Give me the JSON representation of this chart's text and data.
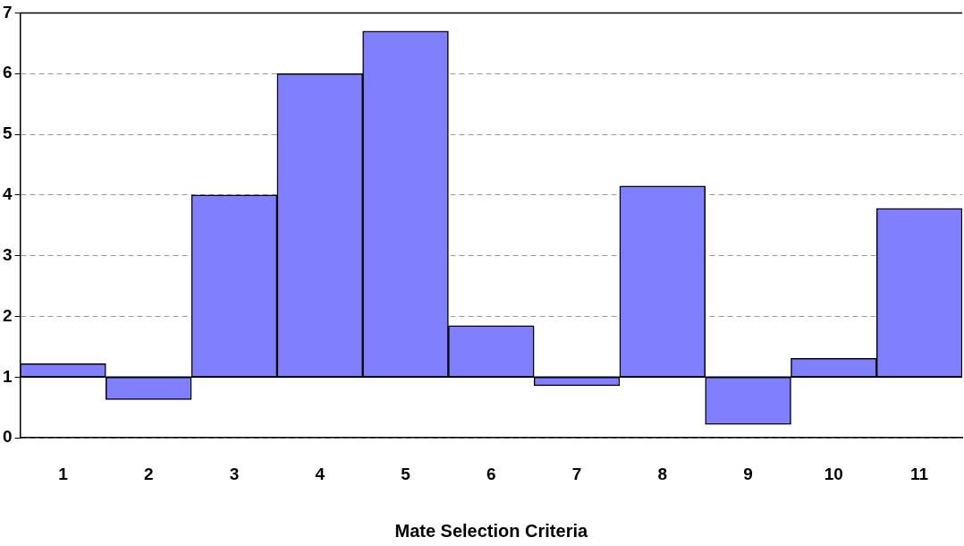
{
  "chart_data": {
    "type": "bar",
    "xlabel": "Mate Selection Criteria",
    "categories": [
      "1",
      "2",
      "3",
      "4",
      "5",
      "6",
      "7",
      "8",
      "9",
      "10",
      "11"
    ],
    "base": [
      1,
      1,
      1,
      1,
      1,
      1,
      1,
      1,
      1,
      1,
      1
    ],
    "values": [
      0.22,
      -0.37,
      3.0,
      5.0,
      5.7,
      0.85,
      -0.14,
      3.15,
      -0.78,
      0.31,
      2.78
    ],
    "color": "#8080ff",
    "ylim": [
      0,
      7
    ],
    "yticks": [
      0,
      1,
      2,
      3,
      4,
      5,
      6,
      7
    ],
    "ref_lines": [
      {
        "axis": "y",
        "value": 1,
        "color": "#000000",
        "line_style": "solid"
      }
    ],
    "grid": "y",
    "legend": false
  }
}
